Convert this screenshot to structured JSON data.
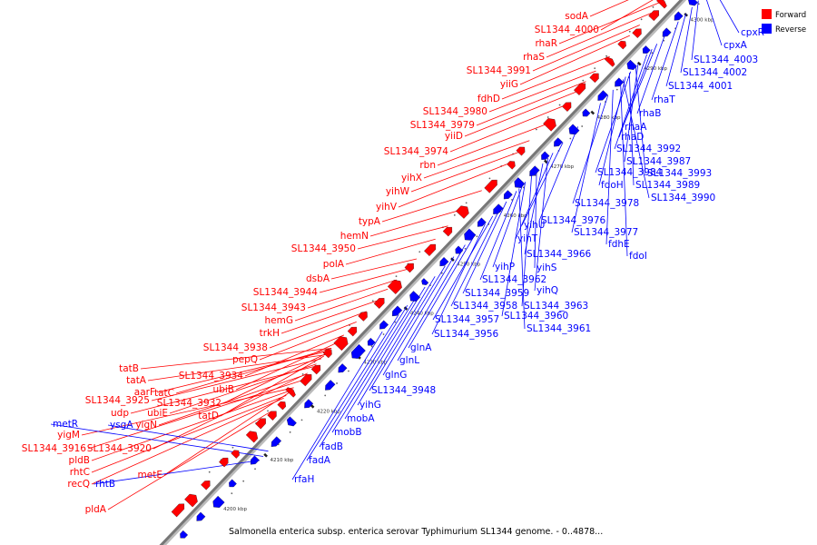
{
  "legend": {
    "forward_label": "Forward",
    "reverse_label": "Reverse",
    "forward_color": "#ff0000",
    "reverse_color": "#0000ff"
  },
  "caption": "Salmonella enterica subsp. enterica serovar Typhimurium SL1344 genome. - 0..4878...",
  "ticks": [
    "4200 kbp",
    "4210 kbp",
    "4220 kbp",
    "4230 kbp",
    "4240 kbp",
    "4250 kbp",
    "4260 kbp",
    "4270 kbp",
    "4280 kbp",
    "4290 kbp",
    "4300 kbp"
  ],
  "forward_labels": [
    "sodA",
    "SL1344_4000",
    "rhaR",
    "rhaS",
    "SL1344_3991",
    "yiiG",
    "fdhD",
    "SL1344_3980",
    "SL1344_3979",
    "yiiD",
    "SL1344_3974",
    "rbn",
    "yihX",
    "yihW",
    "yihV",
    "typA",
    "hemN",
    "SL1344_3950",
    "polA",
    "dsbA",
    "SL1344_3944",
    "SL1344_3943",
    "hemG",
    "trkH",
    "SL1344_3938",
    "pepQ",
    "SL1344_3934",
    "tatB",
    "ubiB",
    "tatA",
    "aarF",
    "tatC",
    "SL1344_3925",
    "SL1344_3932",
    "udp",
    "ubiE",
    "tatD",
    "yigN",
    "yigM",
    "SL1344_3916",
    "SL1344_3920",
    "pldB",
    "metE",
    "rhtC",
    "recQ",
    "pldA"
  ],
  "reverse_labels": [
    "cpxR",
    "cpxA",
    "SL1344_4003",
    "SL1344_4002",
    "SL1344_4001",
    "rhaT",
    "rhaB",
    "rhaA",
    "rhaD",
    "SL1344_3992",
    "SL1344_3987",
    "SL1344_3993",
    "SL1344_3984",
    "SL1344_3989",
    "fdoH",
    "SL1344_3990",
    "SL1344_3978",
    "yihU",
    "SL1344_3976",
    "SL1344_3977",
    "yihT",
    "fdhE",
    "SL1344_3966",
    "fdoI",
    "yihS",
    "yihP",
    "SL1344_3962",
    "yihQ",
    "SL1344_3959",
    "SL1344_3963",
    "SL1344_3958",
    "SL1344_3960",
    "SL1344_3957",
    "SL1344_3961",
    "SL1344_3956",
    "glnA",
    "glnL",
    "glnG",
    "SL1344_3948",
    "yihG",
    "mobA",
    "mobB",
    "fadB",
    "fadA",
    "rfaH",
    "metR",
    "ysgA",
    "rhtB"
  ]
}
